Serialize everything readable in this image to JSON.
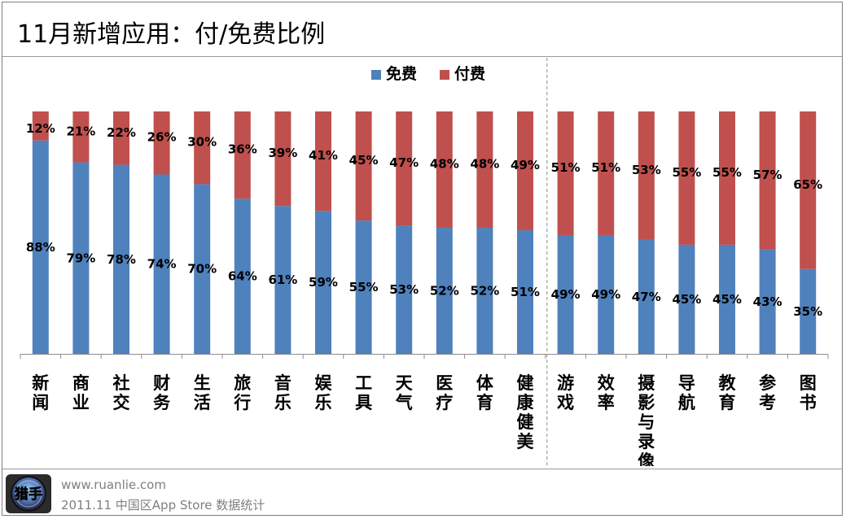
{
  "page": {
    "title": "11月新增应用：付/免费比例",
    "footer_url": "www.ruanlie.com",
    "footer_source": "2011.11 中国区App Store 数据统计",
    "logo_text": "猎手"
  },
  "chart_data": {
    "type": "bar",
    "stacked": true,
    "categories": [
      "新闻",
      "商业",
      "社交",
      "财务",
      "生活",
      "旅行",
      "音乐",
      "娱乐",
      "工具",
      "天气",
      "医疗",
      "体育",
      "健康健美",
      "游戏",
      "效率",
      "摄影与录像",
      "导航",
      "教育",
      "参考",
      "图书"
    ],
    "series": [
      {
        "name": "免费",
        "color": "#4f81bd",
        "values": [
          88,
          79,
          78,
          74,
          70,
          64,
          61,
          59,
          55,
          53,
          52,
          52,
          51,
          49,
          49,
          47,
          45,
          45,
          43,
          35
        ]
      },
      {
        "name": "付费",
        "color": "#c0504d",
        "values": [
          12,
          21,
          22,
          26,
          30,
          36,
          39,
          41,
          45,
          47,
          48,
          48,
          49,
          51,
          51,
          53,
          55,
          55,
          57,
          65
        ]
      }
    ],
    "value_suffix": "%",
    "ylim": [
      0,
      100
    ],
    "legend_position": "top",
    "divider_after_index": 12,
    "grid": false
  }
}
